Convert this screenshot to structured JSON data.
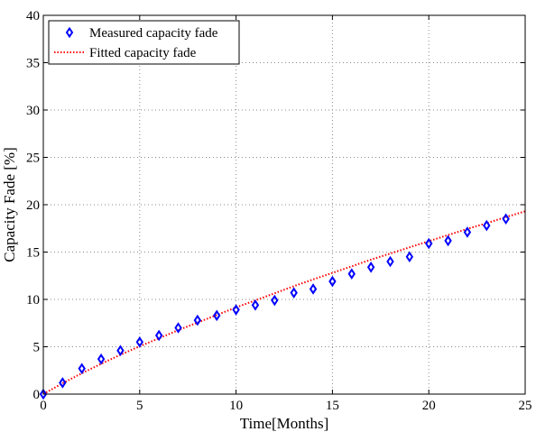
{
  "chart_data": {
    "type": "line",
    "title": "",
    "xlabel": "Time[Months]",
    "ylabel": "Capacity Fade [%]",
    "xlim": [
      0,
      25
    ],
    "ylim": [
      0,
      40
    ],
    "xticks": [
      0,
      5,
      10,
      15,
      20,
      25
    ],
    "yticks": [
      0,
      5,
      10,
      15,
      20,
      25,
      30,
      35,
      40
    ],
    "grid": true,
    "legend_position": "top-left",
    "series": [
      {
        "name": "Measured capacity fade",
        "style": "markers",
        "marker": "diamond",
        "color": "#0000ff",
        "x": [
          0,
          1,
          2,
          3,
          4,
          5,
          6,
          7,
          8,
          9,
          10,
          11,
          12,
          13,
          14,
          15,
          16,
          17,
          18,
          19,
          20,
          21,
          22,
          23,
          24
        ],
        "y": [
          0.0,
          1.2,
          2.7,
          3.7,
          4.6,
          5.5,
          6.2,
          7.0,
          7.8,
          8.3,
          8.9,
          9.4,
          9.9,
          10.7,
          11.1,
          11.9,
          12.7,
          13.4,
          14.0,
          14.5,
          15.9,
          16.2,
          17.1,
          17.8,
          18.5
        ]
      },
      {
        "name": "Fitted capacity fade",
        "style": "dotted-line",
        "color": "#ff0000",
        "x": [
          0,
          1,
          2,
          3,
          4,
          5,
          6,
          7,
          8,
          9,
          10,
          11,
          12,
          13,
          14,
          15,
          16,
          17,
          18,
          19,
          20,
          21,
          22,
          23,
          24,
          25
        ],
        "y": [
          0.0,
          1.15,
          2.2,
          3.2,
          4.15,
          5.05,
          5.9,
          6.75,
          7.55,
          8.35,
          9.15,
          9.9,
          10.65,
          11.4,
          12.1,
          12.8,
          13.5,
          14.2,
          14.85,
          15.5,
          16.15,
          16.8,
          17.45,
          18.05,
          18.7,
          19.3
        ]
      }
    ]
  }
}
